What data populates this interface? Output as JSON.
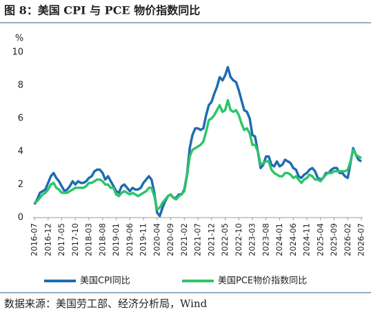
{
  "chart_data": {
    "type": "line",
    "title": "图 8：美国 CPI 与 PCE 物价指数同比",
    "ylabel": "%",
    "source": "数据来源：美国劳工部、经济分析局，Wind",
    "categories": [
      "2016-07",
      null,
      null,
      null,
      null,
      "2016-12",
      null,
      null,
      null,
      null,
      "2017-05",
      null,
      null,
      null,
      null,
      "2017-10",
      null,
      null,
      null,
      null,
      "2018-03",
      null,
      null,
      null,
      null,
      "2018-08",
      null,
      null,
      null,
      null,
      "2019-01",
      null,
      null,
      null,
      null,
      "2019-06",
      null,
      null,
      null,
      null,
      "2019-11",
      null,
      null,
      null,
      null,
      "2020-04",
      null,
      null,
      null,
      null,
      "2020-09",
      null,
      null,
      null,
      null,
      "2021-02",
      null,
      null,
      null,
      null,
      "2021-07",
      null,
      null,
      null,
      null,
      "2021-12",
      null,
      null,
      null,
      null,
      "2022-05",
      null,
      null,
      null,
      null,
      "2022-10",
      null,
      null,
      null,
      null,
      "2023-03",
      null,
      null,
      null,
      null,
      "2023-08",
      null,
      null,
      null,
      null,
      "2024-01",
      null,
      null,
      null,
      null,
      "2024-06",
      null,
      null,
      null,
      null,
      "2024-11",
      null,
      null,
      null,
      null,
      "2025-04",
      null,
      null,
      null,
      null,
      "2025-09",
      null,
      null,
      null,
      null,
      "2026-02",
      null,
      null,
      null,
      null,
      "2026-07"
    ],
    "series": [
      {
        "name": "美国CPI同比",
        "color": "#1f6bb0",
        "values": [
          0.8,
          1.1,
          1.5,
          1.6,
          1.7,
          2.1,
          2.5,
          2.7,
          2.4,
          2.2,
          1.9,
          1.6,
          1.7,
          1.9,
          2.2,
          2.0,
          2.2,
          2.1,
          2.1,
          2.2,
          2.4,
          2.5,
          2.8,
          2.9,
          2.9,
          2.7,
          2.3,
          2.5,
          2.2,
          1.9,
          1.6,
          1.5,
          1.9,
          2.0,
          1.8,
          1.6,
          1.8,
          1.7,
          1.7,
          1.8,
          2.1,
          2.3,
          2.5,
          2.3,
          1.5,
          0.3,
          0.1,
          0.6,
          1.0,
          1.3,
          1.4,
          1.2,
          1.2,
          1.4,
          1.4,
          1.7,
          2.6,
          4.2,
          5.0,
          5.4,
          5.4,
          5.3,
          5.4,
          6.2,
          6.8,
          7.0,
          7.5,
          7.9,
          8.5,
          8.3,
          8.6,
          9.1,
          8.5,
          8.3,
          8.2,
          7.7,
          7.1,
          6.5,
          6.4,
          6.0,
          5.0,
          4.9,
          4.0,
          3.0,
          3.2,
          3.7,
          3.7,
          3.2,
          3.1,
          3.4,
          3.1,
          3.2,
          3.5,
          3.4,
          3.3,
          3.0,
          2.9,
          2.5,
          2.4,
          2.6,
          2.7,
          2.9,
          3.0,
          2.8,
          2.4,
          2.3,
          2.4,
          2.7,
          2.7,
          2.9,
          3.0,
          3.0,
          2.7,
          2.7,
          2.5,
          2.4,
          3.3,
          4.2,
          3.8,
          3.5,
          3.4
        ]
      },
      {
        "name": "美国PCE物价指数同比",
        "color": "#2ec46a",
        "values": [
          0.9,
          1.0,
          1.2,
          1.4,
          1.5,
          1.7,
          2.0,
          2.1,
          1.8,
          1.7,
          1.5,
          1.5,
          1.5,
          1.6,
          1.7,
          1.8,
          1.8,
          1.8,
          1.8,
          1.9,
          2.1,
          2.1,
          2.2,
          2.3,
          2.3,
          2.2,
          2.0,
          2.0,
          1.8,
          1.8,
          1.4,
          1.3,
          1.5,
          1.6,
          1.5,
          1.4,
          1.5,
          1.4,
          1.3,
          1.4,
          1.5,
          1.6,
          1.8,
          1.8,
          1.3,
          0.5,
          0.6,
          0.9,
          1.1,
          1.3,
          1.4,
          1.2,
          1.1,
          1.3,
          1.4,
          1.6,
          2.5,
          3.7,
          4.1,
          4.2,
          4.3,
          4.4,
          4.6,
          5.2,
          5.9,
          6.0,
          6.2,
          6.5,
          6.8,
          6.4,
          6.5,
          7.1,
          6.5,
          6.4,
          6.5,
          6.2,
          5.7,
          5.3,
          5.4,
          5.1,
          4.4,
          4.4,
          4.0,
          3.2,
          3.3,
          3.4,
          3.4,
          2.9,
          2.7,
          2.6,
          2.5,
          2.5,
          2.7,
          2.7,
          2.6,
          2.4,
          2.5,
          2.3,
          2.1,
          2.3,
          2.4,
          2.6,
          2.5,
          2.3,
          2.3,
          2.2,
          2.4,
          2.6,
          2.7,
          2.7,
          2.8,
          2.8,
          2.8,
          2.8,
          2.8,
          2.9,
          3.4,
          4.1,
          3.8,
          3.7,
          3.6
        ]
      }
    ],
    "ylim": [
      0,
      10
    ],
    "yticks": [
      0,
      2,
      4,
      6,
      8,
      10
    ],
    "grid": false
  }
}
